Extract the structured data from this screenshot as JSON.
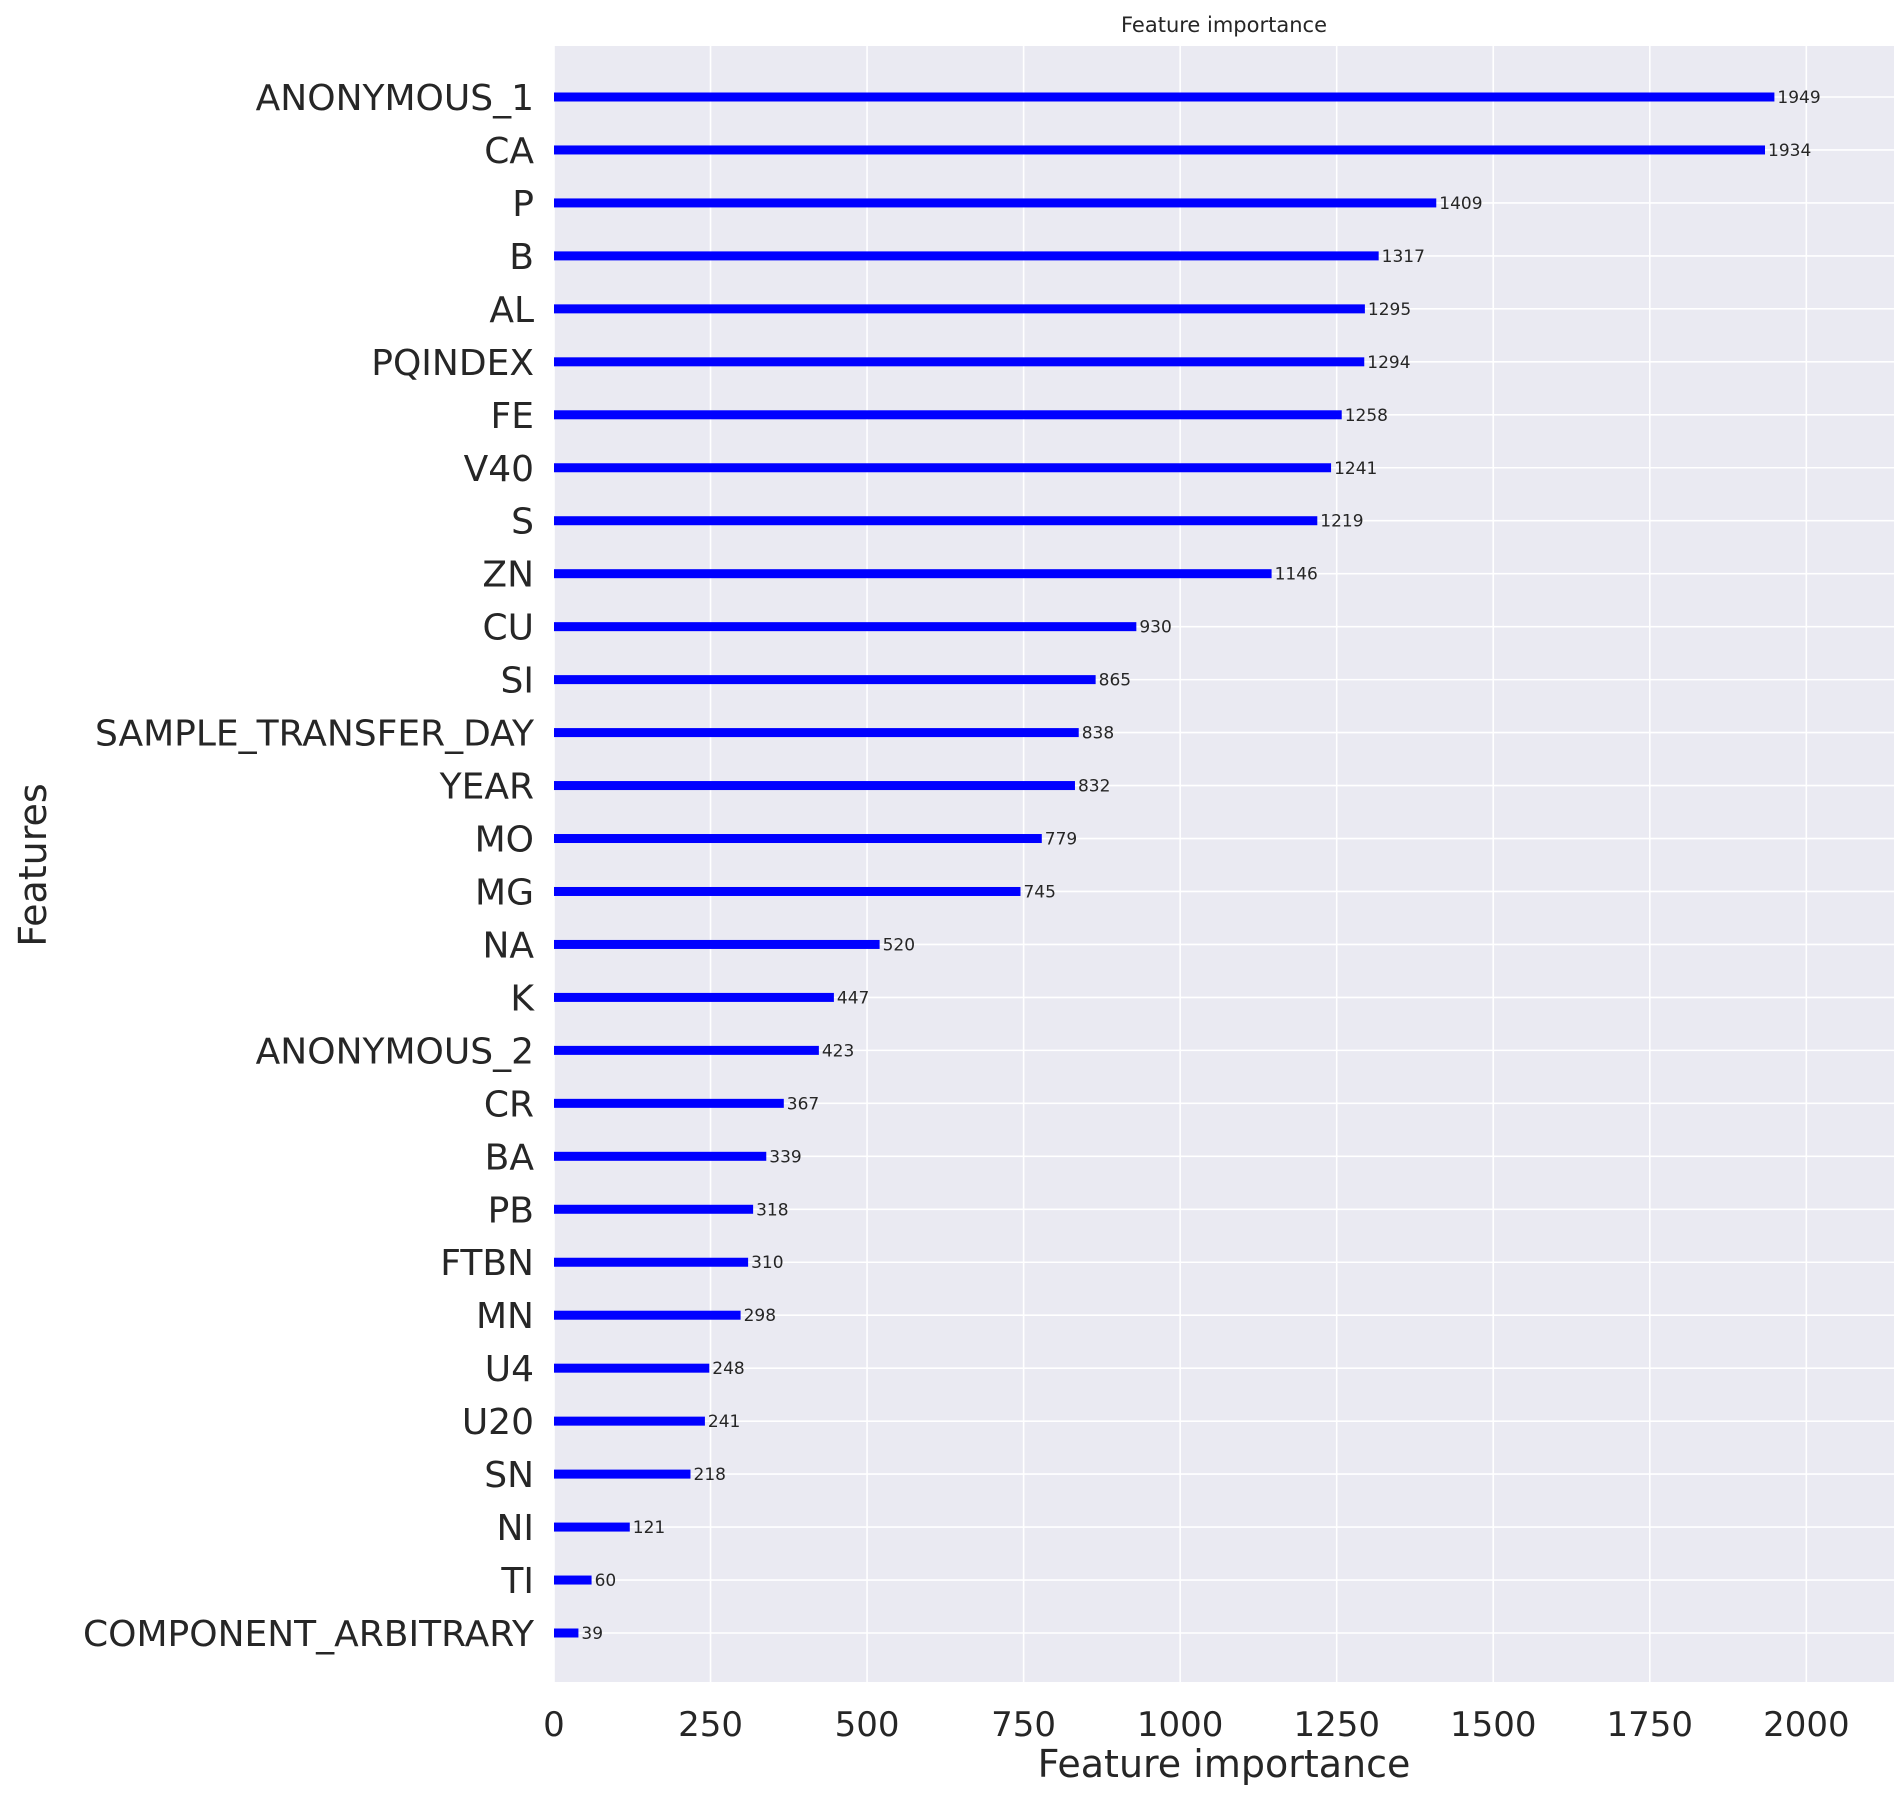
{
  "chart_data": {
    "type": "bar",
    "orientation": "horizontal",
    "title": "Feature importance",
    "xlabel": "Feature importance",
    "ylabel": "Features",
    "xlim": [
      0,
      2140
    ],
    "xticks": [
      0,
      250,
      500,
      750,
      1000,
      1250,
      1500,
      1750,
      2000
    ],
    "grid": true,
    "bar_color": "#0000ff",
    "background_color": "#eaeaf2",
    "categories": [
      "ANONYMOUS_1",
      "CA",
      "P",
      "B",
      "AL",
      "PQINDEX",
      "FE",
      "V40",
      "S",
      "ZN",
      "CU",
      "SI",
      "SAMPLE_TRANSFER_DAY",
      "YEAR",
      "MO",
      "MG",
      "NA",
      "K",
      "ANONYMOUS_2",
      "CR",
      "BA",
      "PB",
      "FTBN",
      "MN",
      "U4",
      "U20",
      "SN",
      "NI",
      "TI",
      "COMPONENT_ARBITRARY"
    ],
    "values": [
      1949,
      1934,
      1409,
      1317,
      1295,
      1294,
      1258,
      1241,
      1219,
      1146,
      930,
      865,
      838,
      832,
      779,
      745,
      520,
      447,
      423,
      367,
      339,
      318,
      310,
      298,
      248,
      241,
      218,
      121,
      60,
      39
    ]
  }
}
